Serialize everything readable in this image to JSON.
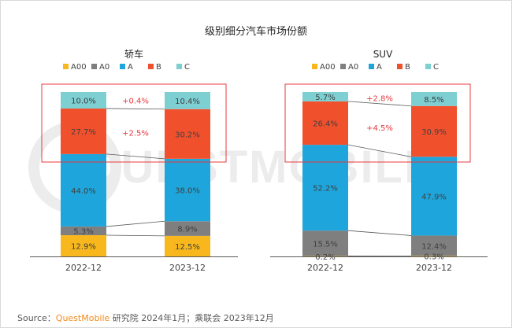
{
  "title": "级别细分汽车市场份额",
  "source": {
    "prefix": "Source：",
    "brand": "QuestMobile",
    "suffix": " 研究院 2024年1月；乘联会 2023年12月"
  },
  "watermark": "QUESTMOBILE",
  "colors": {
    "A00": "#f7b71d",
    "A0": "#7f7f7f",
    "A": "#1ea6dc",
    "B": "#f1502d",
    "C": "#7dcfd2",
    "highlight_box": "#e8383d",
    "change_text": "#e8383d"
  },
  "chart_data": [
    {
      "type": "bar",
      "stacked": true,
      "normalized": true,
      "subtitle": "轿车",
      "categories": [
        "2022-12",
        "2023-12"
      ],
      "legend": [
        "A00",
        "A0",
        "A",
        "B",
        "C"
      ],
      "series": [
        {
          "name": "A00",
          "values": [
            12.9,
            12.5
          ],
          "labels": [
            "12.9%",
            "12.5%"
          ]
        },
        {
          "name": "A0",
          "values": [
            5.3,
            8.9
          ],
          "labels": [
            "5.3%",
            "8.9%"
          ]
        },
        {
          "name": "A",
          "values": [
            44.0,
            38.0
          ],
          "labels": [
            "44.0%",
            "38.0%"
          ]
        },
        {
          "name": "B",
          "values": [
            27.7,
            30.2
          ],
          "labels": [
            "27.7%",
            "30.2%"
          ]
        },
        {
          "name": "C",
          "values": [
            10.0,
            10.4
          ],
          "labels": [
            "10.0%",
            "10.4%"
          ]
        }
      ],
      "annotations": [
        {
          "segment": "C",
          "text": "+0.4%"
        },
        {
          "segment": "B",
          "text": "+2.5%"
        }
      ]
    },
    {
      "type": "bar",
      "stacked": true,
      "normalized": true,
      "subtitle": "SUV",
      "categories": [
        "2022-12",
        "2023-12"
      ],
      "legend": [
        "A00",
        "A0",
        "A",
        "B",
        "C"
      ],
      "series": [
        {
          "name": "A00",
          "values": [
            0.2,
            0.3
          ],
          "labels": [
            "0.2%",
            "0.3%"
          ]
        },
        {
          "name": "A0",
          "values": [
            15.5,
            12.4
          ],
          "labels": [
            "15.5%",
            "12.4%"
          ]
        },
        {
          "name": "A",
          "values": [
            52.2,
            47.9
          ],
          "labels": [
            "52.2%",
            "47.9%"
          ]
        },
        {
          "name": "B",
          "values": [
            26.4,
            30.9
          ],
          "labels": [
            "26.4%",
            "30.9%"
          ]
        },
        {
          "name": "C",
          "values": [
            5.7,
            8.5
          ],
          "labels": [
            "5.7%",
            "8.5%"
          ]
        }
      ],
      "annotations": [
        {
          "segment": "C",
          "text": "+2.8%"
        },
        {
          "segment": "B",
          "text": "+4.5%"
        }
      ]
    }
  ]
}
